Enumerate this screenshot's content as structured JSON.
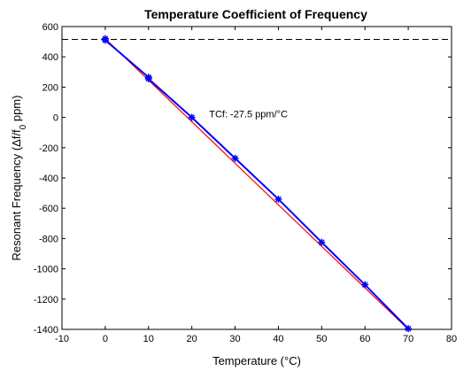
{
  "chart_data": {
    "type": "line",
    "title": "Temperature Coefficient of Frequency",
    "xlabel": "Temperature (°C)",
    "ylabel": "Resonant Frequency (Δf/f0 ppm)",
    "ylabel_parts": {
      "pre": "Resonant Frequency (Δf/f",
      "sub": "0",
      "post": " ppm)"
    },
    "xlim": [
      -10,
      80
    ],
    "ylim": [
      -1400,
      600
    ],
    "xticks": [
      -10,
      0,
      10,
      20,
      30,
      40,
      50,
      60,
      70,
      80
    ],
    "yticks": [
      600,
      400,
      200,
      0,
      -200,
      -400,
      -600,
      -800,
      -1000,
      -1200,
      -1400
    ],
    "grid": false,
    "annotation": {
      "text": "TCf: -27.5 ppm/°C",
      "x": 24,
      "y": 0
    },
    "reference_lines": [
      {
        "y": 515,
        "style": "dashed",
        "color": "#000000"
      },
      {
        "y": -1400,
        "style": "dashed",
        "color": "#000000"
      }
    ],
    "series": [
      {
        "color": "#0000ff",
        "marker": "star",
        "x": [
          0,
          0,
          10,
          10,
          20,
          30,
          40,
          50,
          60,
          70
        ],
        "y": [
          520,
          510,
          265,
          255,
          0,
          -270,
          -540,
          -825,
          -1105,
          -1395
        ]
      },
      {
        "color": "#ff0000",
        "style": "fit",
        "x": [
          0,
          70
        ],
        "y": [
          520,
          -1400
        ]
      }
    ]
  }
}
